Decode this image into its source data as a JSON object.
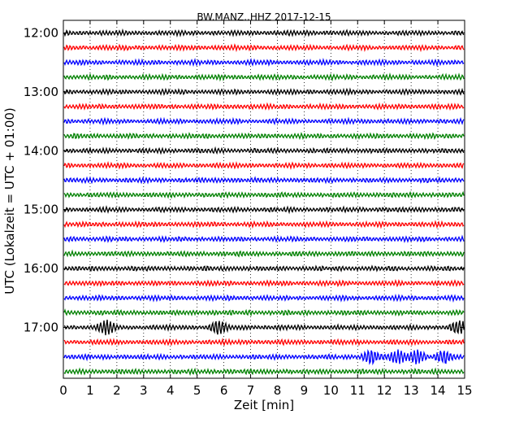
{
  "chart_data": {
    "type": "line",
    "title": "BW.MANZ..HHZ 2017-12-15",
    "xlabel": "Zeit  [min]",
    "ylabel": "UTC (Lokalzeit = UTC + 01:00)",
    "xlim": [
      0,
      15
    ],
    "x_ticks": [
      "0",
      "1",
      "2",
      "3",
      "4",
      "5",
      "6",
      "7",
      "8",
      "9",
      "10",
      "11",
      "12",
      "13",
      "14",
      "15"
    ],
    "y_ticks": [
      "12:00",
      "13:00",
      "14:00",
      "15:00",
      "16:00",
      "17:00"
    ],
    "grid": "vertical dotted",
    "trace_colors": [
      "#000000",
      "#ff0000",
      "#0000ff",
      "#008000"
    ],
    "series": [
      {
        "start": "12:00",
        "color": "#000000"
      },
      {
        "start": "12:15",
        "color": "#ff0000"
      },
      {
        "start": "12:30",
        "color": "#0000ff"
      },
      {
        "start": "12:45",
        "color": "#008000"
      },
      {
        "start": "13:00",
        "color": "#000000"
      },
      {
        "start": "13:15",
        "color": "#ff0000"
      },
      {
        "start": "13:30",
        "color": "#0000ff"
      },
      {
        "start": "13:45",
        "color": "#008000"
      },
      {
        "start": "14:00",
        "color": "#000000"
      },
      {
        "start": "14:15",
        "color": "#ff0000"
      },
      {
        "start": "14:30",
        "color": "#0000ff"
      },
      {
        "start": "14:45",
        "color": "#008000"
      },
      {
        "start": "15:00",
        "color": "#000000"
      },
      {
        "start": "15:15",
        "color": "#ff0000"
      },
      {
        "start": "15:30",
        "color": "#0000ff"
      },
      {
        "start": "15:45",
        "color": "#008000"
      },
      {
        "start": "16:00",
        "color": "#000000"
      },
      {
        "start": "16:15",
        "color": "#ff0000"
      },
      {
        "start": "16:30",
        "color": "#0000ff"
      },
      {
        "start": "16:45",
        "color": "#008000"
      },
      {
        "start": "17:00",
        "color": "#000000",
        "events_min": [
          1.6,
          5.8,
          14.8
        ]
      },
      {
        "start": "17:15",
        "color": "#ff0000"
      },
      {
        "start": "17:30",
        "color": "#0000ff",
        "events_min": [
          11.5,
          12.5,
          13.2,
          14.2
        ]
      },
      {
        "start": "17:45",
        "color": "#008000"
      }
    ]
  }
}
